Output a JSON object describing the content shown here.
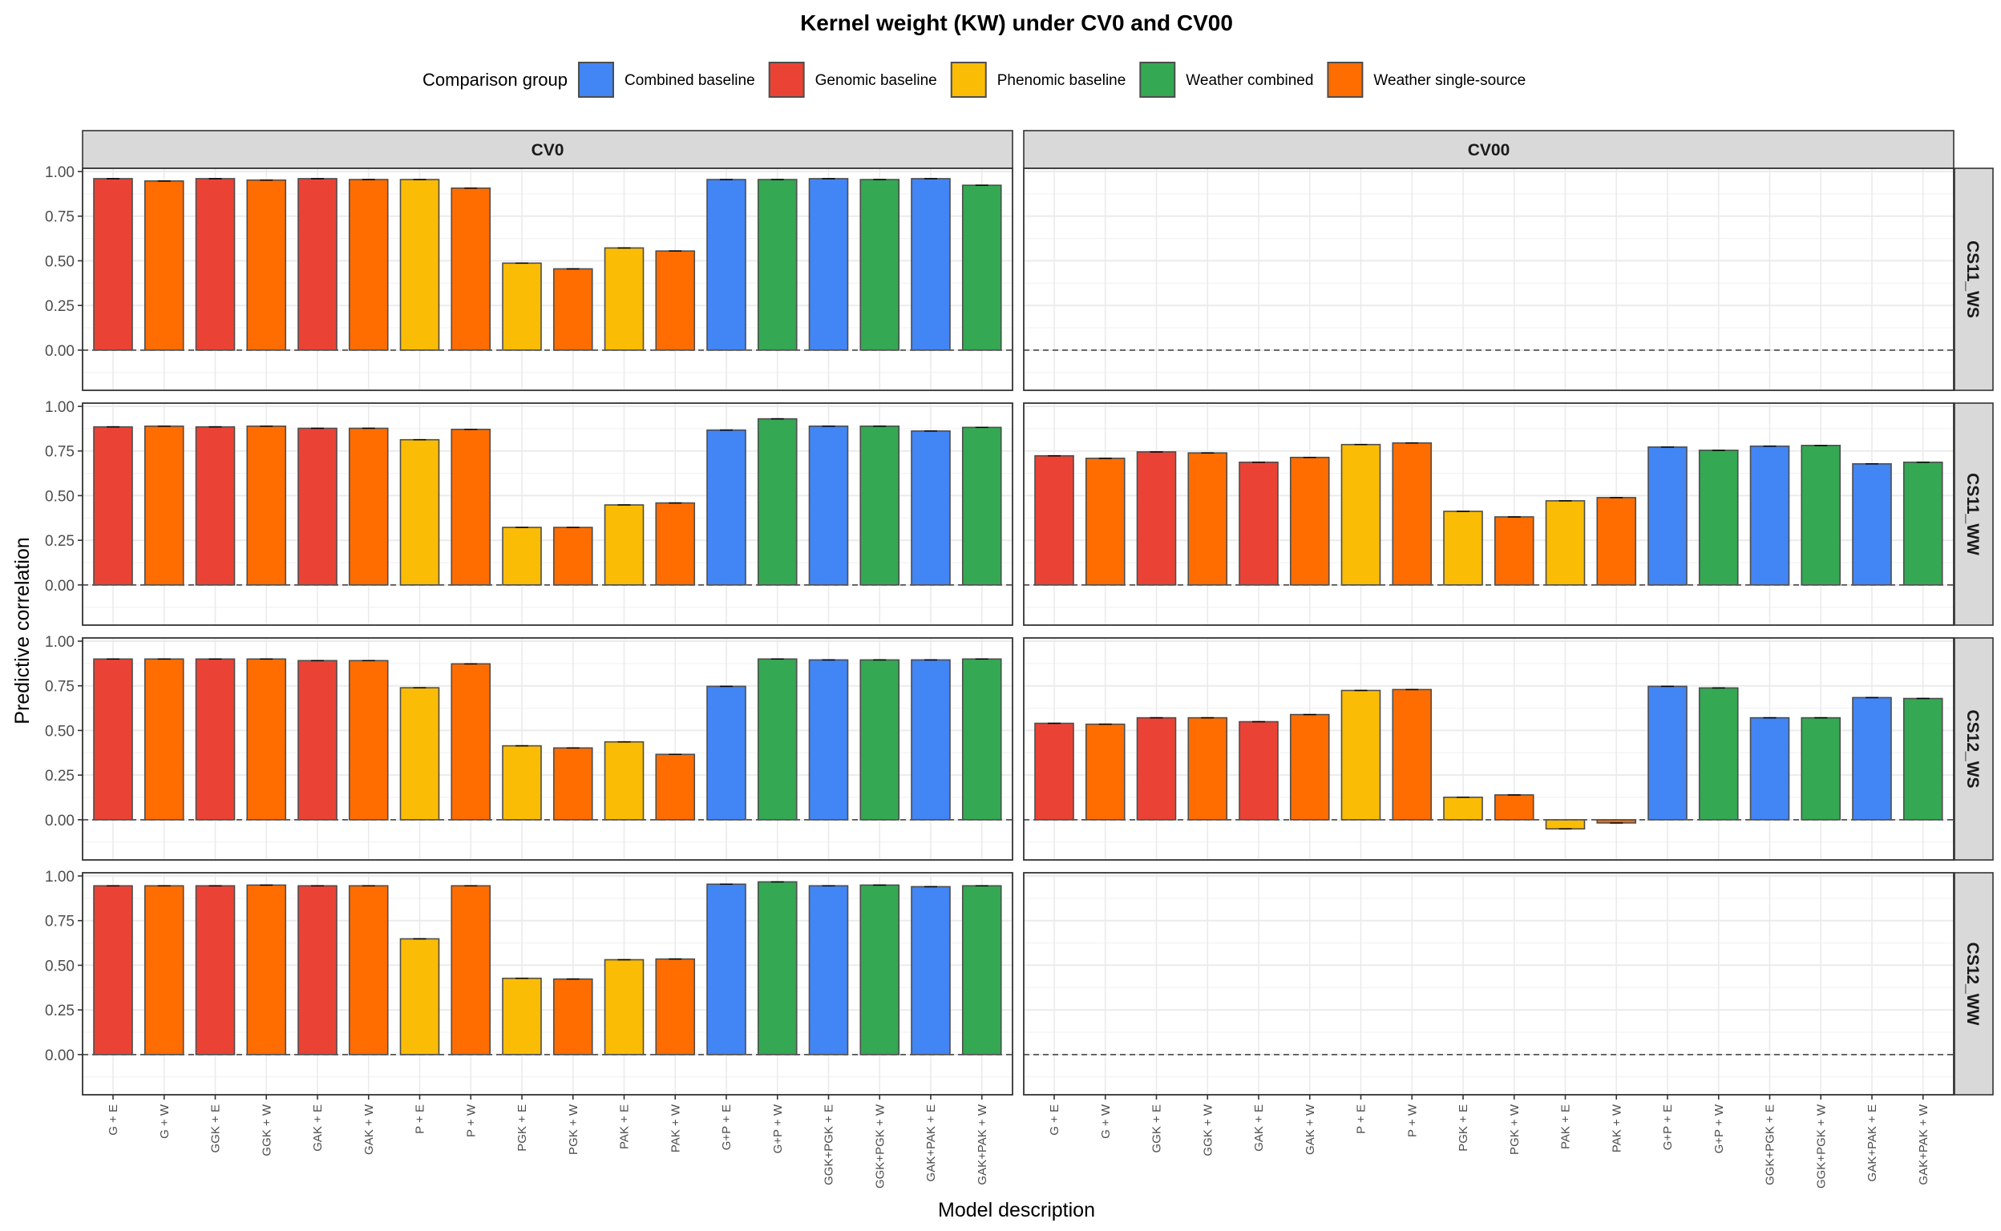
{
  "chart_data": {
    "type": "bar",
    "title": "Kernel weight (KW) under CV0 and CV00",
    "xlabel": "Model description",
    "ylabel": "Predictive correlation",
    "ylim": [
      -0.225,
      1.018
    ],
    "yticks": [
      0,
      0.25,
      0.5,
      0.75,
      1.0
    ],
    "ytick_labels": [
      "0.00",
      "0.25",
      "0.50",
      "0.75",
      "1.00"
    ],
    "grid": true,
    "reference_line": 0,
    "legend": {
      "title": "Comparison group",
      "position": "top",
      "entries": [
        {
          "name": "Combined baseline",
          "color": "#4285F4"
        },
        {
          "name": "Genomic baseline",
          "color": "#EA4335"
        },
        {
          "name": "Phenomic baseline",
          "color": "#FBBC05"
        },
        {
          "name": "Weather combined",
          "color": "#34A853"
        },
        {
          "name": "Weather single-source",
          "color": "#FF6D00"
        }
      ]
    },
    "categories": [
      "G + E",
      "G + W",
      "GGK + E",
      "GGK + W",
      "GAK + E",
      "GAK + W",
      "P + E",
      "P + W",
      "PGK + E",
      "PGK + W",
      "PAK + E",
      "PAK + W",
      "G+P + E",
      "G+P + W",
      "GGK+PGK + E",
      "GGK+PGK + W",
      "GAK+PAK + E",
      "GAK+PAK + W"
    ],
    "category_groups": [
      "Genomic baseline",
      "Weather single-source",
      "Genomic baseline",
      "Weather single-source",
      "Genomic baseline",
      "Weather single-source",
      "Phenomic baseline",
      "Weather single-source",
      "Phenomic baseline",
      "Weather single-source",
      "Phenomic baseline",
      "Weather single-source",
      "Combined baseline",
      "Weather combined",
      "Combined baseline",
      "Weather combined",
      "Combined baseline",
      "Weather combined"
    ],
    "facet_columns": [
      "CV0",
      "CV00"
    ],
    "facet_rows": [
      "CS11_WS",
      "CS11_WW",
      "CS12_WS",
      "CS12_WW"
    ],
    "panels": [
      {
        "row": "CS11_WS",
        "col": "CV0",
        "values": [
          0.96,
          0.947,
          0.96,
          0.952,
          0.96,
          0.955,
          0.955,
          0.907,
          0.487,
          0.455,
          0.572,
          0.555,
          0.955,
          0.955,
          0.96,
          0.955,
          0.96,
          0.923
        ]
      },
      {
        "row": "CS11_WS",
        "col": "CV00",
        "values": []
      },
      {
        "row": "CS11_WW",
        "col": "CV0",
        "values": [
          0.885,
          0.889,
          0.885,
          0.889,
          0.877,
          0.877,
          0.813,
          0.871,
          0.322,
          0.322,
          0.448,
          0.459,
          0.867,
          0.93,
          0.889,
          0.889,
          0.862,
          0.882
        ]
      },
      {
        "row": "CS11_WW",
        "col": "CV00",
        "values": [
          0.723,
          0.709,
          0.745,
          0.739,
          0.687,
          0.714,
          0.786,
          0.795,
          0.412,
          0.381,
          0.471,
          0.489,
          0.772,
          0.754,
          0.777,
          0.781,
          0.678,
          0.687
        ]
      },
      {
        "row": "CS12_WS",
        "col": "CV0",
        "values": [
          0.9,
          0.9,
          0.9,
          0.9,
          0.891,
          0.891,
          0.739,
          0.873,
          0.414,
          0.402,
          0.436,
          0.366,
          0.747,
          0.9,
          0.895,
          0.895,
          0.895,
          0.9
        ]
      },
      {
        "row": "CS12_WS",
        "col": "CV00",
        "values": [
          0.54,
          0.535,
          0.571,
          0.571,
          0.549,
          0.589,
          0.724,
          0.729,
          0.126,
          0.139,
          -0.051,
          -0.018,
          0.747,
          0.738,
          0.571,
          0.571,
          0.684,
          0.679
        ]
      },
      {
        "row": "CS12_WW",
        "col": "CV0",
        "values": [
          0.945,
          0.945,
          0.945,
          0.949,
          0.945,
          0.945,
          0.648,
          0.945,
          0.427,
          0.423,
          0.531,
          0.535,
          0.954,
          0.967,
          0.945,
          0.949,
          0.94,
          0.945
        ]
      },
      {
        "row": "CS12_WW",
        "col": "CV00",
        "values": []
      }
    ]
  }
}
